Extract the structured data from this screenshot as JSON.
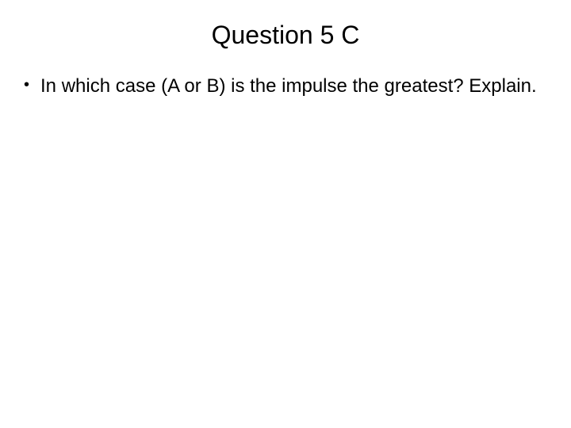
{
  "slide": {
    "title": "Question 5 C",
    "title_fontsize": 32,
    "title_color": "#000000",
    "background_color": "#ffffff",
    "bullets": [
      {
        "marker": "•",
        "text": "In which case (A or B) is the impulse the greatest? Explain."
      }
    ],
    "body_fontsize": 24,
    "body_color": "#000000"
  }
}
